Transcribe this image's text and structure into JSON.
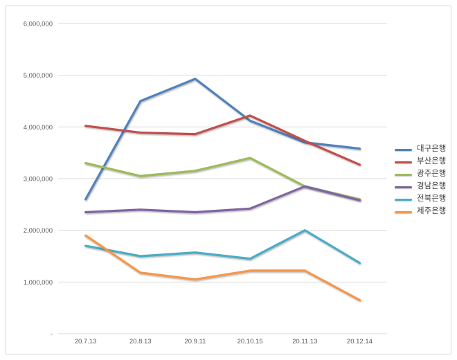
{
  "chart_data": {
    "type": "line",
    "title": "",
    "categories": [
      "20.7.13",
      "20.8.13",
      "20.9.11",
      "20.10.15",
      "20.11.13",
      "20.12.14"
    ],
    "y_ticks": [
      "6,000,000",
      "5,000,000",
      "4,000,000",
      "3,000,000",
      "2,000,000",
      "1,000,000",
      "-"
    ],
    "ylim": [
      0,
      6000000
    ],
    "grid": "horizontal",
    "legend_position": "right",
    "series": [
      {
        "name": "대구은행",
        "color": "#4F81BD",
        "values": [
          2600000,
          4500000,
          4930000,
          4120000,
          3700000,
          3580000
        ]
      },
      {
        "name": "부산은행",
        "color": "#C0504D",
        "values": [
          4020000,
          3890000,
          3860000,
          4220000,
          3730000,
          3270000
        ]
      },
      {
        "name": "광주은행",
        "color": "#9BBB59",
        "values": [
          3300000,
          3050000,
          3150000,
          3400000,
          2850000,
          2600000
        ]
      },
      {
        "name": "경남은행",
        "color": "#8064A2",
        "values": [
          2350000,
          2400000,
          2350000,
          2420000,
          2850000,
          2580000
        ]
      },
      {
        "name": "전북은행",
        "color": "#4BACC6",
        "values": [
          1700000,
          1500000,
          1570000,
          1450000,
          2000000,
          1370000
        ]
      },
      {
        "name": "제주은행",
        "color": "#F79646",
        "values": [
          1900000,
          1180000,
          1050000,
          1220000,
          1220000,
          650000
        ]
      }
    ]
  },
  "style": {
    "frame_border_color": "#d7d7d7",
    "gridline_color": "#d9d9d9",
    "tick_label_color": "#595959",
    "legend_text_color": "#404040",
    "background": "#ffffff"
  }
}
